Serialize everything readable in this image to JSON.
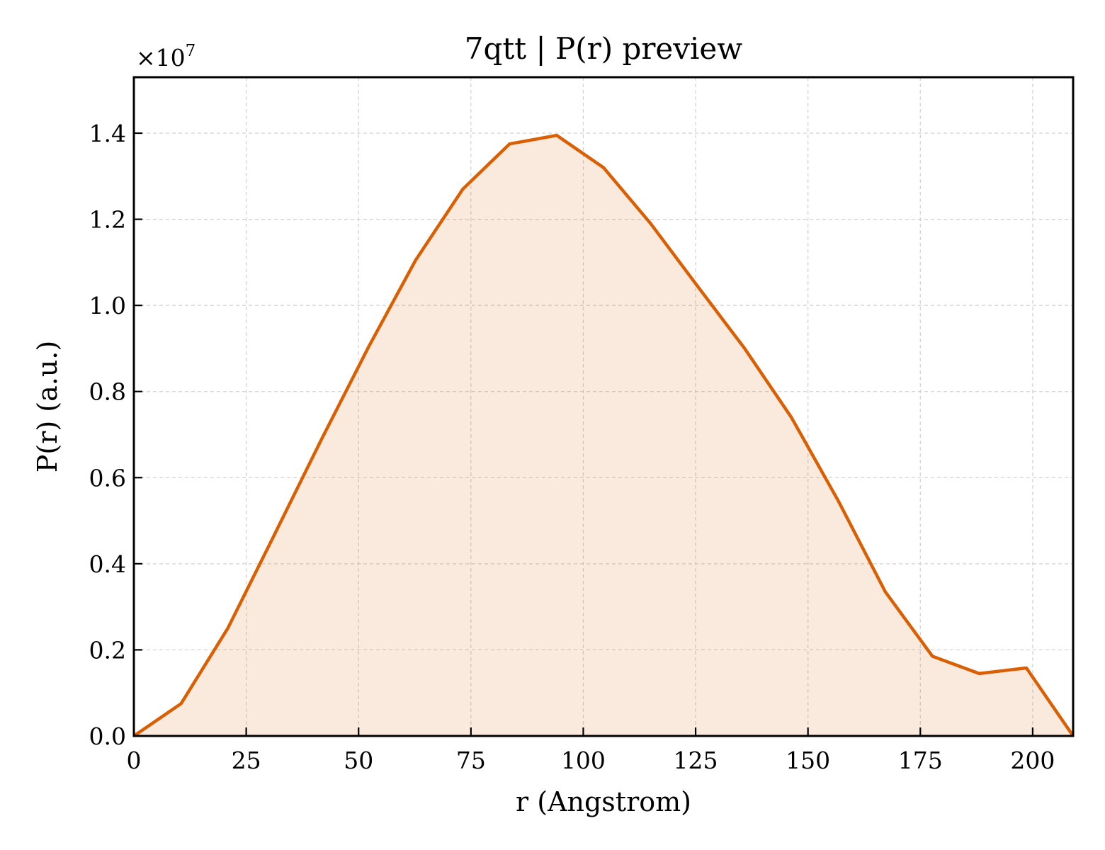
{
  "chart_data": {
    "type": "area",
    "title": "7qtt | P(r) preview",
    "xlabel": "r (Angstrom)",
    "ylabel": "P(r) (a.u.)",
    "y_offset_label": "×10",
    "y_offset_exponent": "7",
    "xlim": [
      0,
      209
    ],
    "ylim": [
      0,
      1.53
    ],
    "y_scale_factor": 10000000,
    "x_ticks": [
      0,
      25,
      50,
      75,
      100,
      125,
      150,
      175,
      200
    ],
    "x_tick_labels": [
      "0",
      "25",
      "50",
      "75",
      "100",
      "125",
      "150",
      "175",
      "200"
    ],
    "y_ticks": [
      0.0,
      0.2,
      0.4,
      0.6,
      0.8,
      1.0,
      1.2,
      1.4
    ],
    "y_tick_labels": [
      "0.0",
      "0.2",
      "0.4",
      "0.6",
      "0.8",
      "1.0",
      "1.2",
      "1.4"
    ],
    "grid": true,
    "series": [
      {
        "color": "#d95f02",
        "fill_color": "#d95f02",
        "fill_opacity": 0.13,
        "x": [
          0,
          10.5,
          20.9,
          31.4,
          41.8,
          52.3,
          62.7,
          73.2,
          83.6,
          94.1,
          104.5,
          115.0,
          125.4,
          135.9,
          146.3,
          156.8,
          167.2,
          177.7,
          188.1,
          198.6,
          209.0
        ],
        "y": [
          0.0,
          0.075,
          0.25,
          0.47,
          0.69,
          0.905,
          1.105,
          1.27,
          1.375,
          1.395,
          1.32,
          1.19,
          1.045,
          0.9,
          0.74,
          0.545,
          0.335,
          0.185,
          0.145,
          0.158,
          0.0
        ]
      }
    ]
  }
}
